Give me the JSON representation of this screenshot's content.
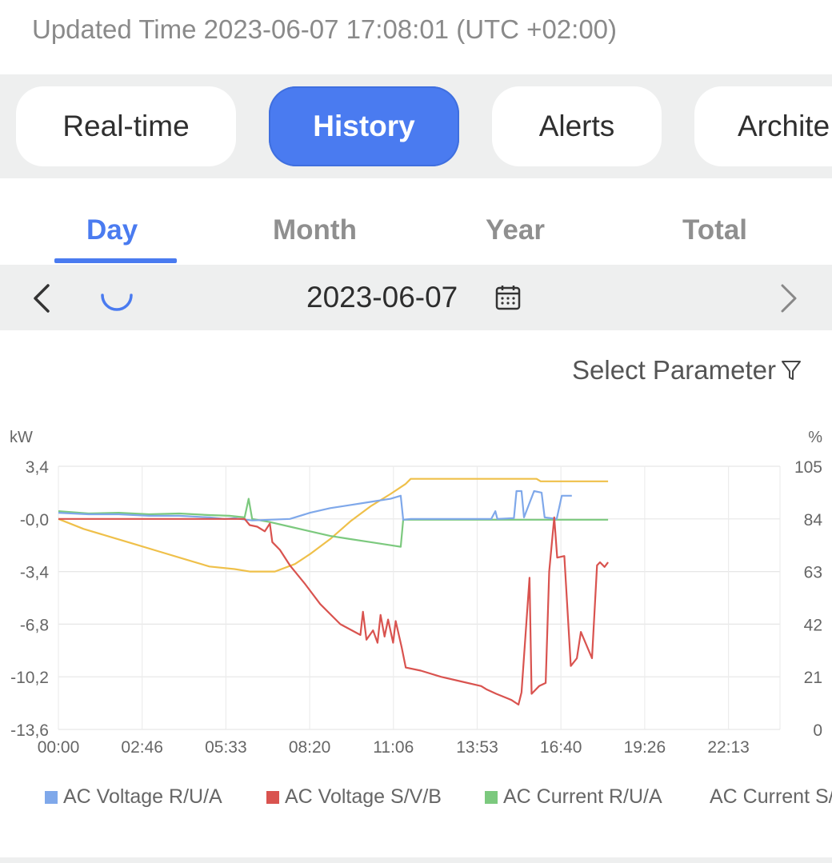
{
  "header": {
    "updated_time": "Updated Time 2023-06-07 17:08:01 (UTC +02:00)"
  },
  "tabs": [
    {
      "label": "Real-time",
      "active": false
    },
    {
      "label": "History",
      "active": true
    },
    {
      "label": "Alerts",
      "active": false
    },
    {
      "label": "Archite",
      "active": false
    }
  ],
  "periods": [
    {
      "label": "Day",
      "active": true
    },
    {
      "label": "Month",
      "active": false
    },
    {
      "label": "Year",
      "active": false
    },
    {
      "label": "Total",
      "active": false
    }
  ],
  "date_nav": {
    "date": "2023-06-07",
    "prev_icon": "chevron-left-icon",
    "next_icon": "chevron-right-icon",
    "loading_icon": "spinner-icon",
    "calendar_icon": "calendar-icon"
  },
  "filter": {
    "label": "Select Parameter",
    "icon": "filter-icon"
  },
  "colors": {
    "accent": "#4a7bf0",
    "blue": "#7fa8ea",
    "red": "#d9534f",
    "green": "#7cc97e",
    "yellow": "#efc04a"
  },
  "chart_data": {
    "type": "line",
    "ylabel_left": "kW",
    "ylabel_right": "%",
    "y_left_ticks": [
      "3,4",
      "-0,0",
      "-3,4",
      "-6,8",
      "-10,2",
      "-13,6"
    ],
    "y_right_ticks": [
      "105",
      "84",
      "63",
      "42",
      "21",
      "0"
    ],
    "x_ticks": [
      "00:00",
      "02:46",
      "05:33",
      "08:20",
      "11:06",
      "13:53",
      "16:40",
      "19:26",
      "22:13"
    ],
    "ylim_left": [
      -13.6,
      3.4
    ],
    "ylim_right": [
      0,
      105
    ],
    "grid": true,
    "legend_position": "bottom",
    "series": [
      {
        "name": "AC Voltage R/U/A",
        "color": "#7fa8ea",
        "axis": "left",
        "points": [
          [
            0,
            0.4
          ],
          [
            60,
            0.3
          ],
          [
            120,
            0.3
          ],
          [
            180,
            0.2
          ],
          [
            240,
            0.2
          ],
          [
            300,
            0.1
          ],
          [
            330,
            0.0
          ],
          [
            350,
            0.05
          ],
          [
            360,
            0.0
          ],
          [
            385,
            -0.1
          ],
          [
            420,
            -0.05
          ],
          [
            460,
            0.0
          ],
          [
            500,
            0.4
          ],
          [
            540,
            0.7
          ],
          [
            580,
            0.9
          ],
          [
            620,
            1.1
          ],
          [
            660,
            1.3
          ],
          [
            680,
            1.5
          ],
          [
            685,
            -0.05
          ],
          [
            700,
            0.0
          ],
          [
            760,
            0.0
          ],
          [
            820,
            0.0
          ],
          [
            860,
            0.0
          ],
          [
            868,
            0.5
          ],
          [
            872,
            0.0
          ],
          [
            905,
            0.05
          ],
          [
            910,
            1.8
          ],
          [
            920,
            1.8
          ],
          [
            925,
            0.1
          ],
          [
            945,
            1.8
          ],
          [
            960,
            1.7
          ],
          [
            966,
            0.1
          ],
          [
            990,
            0.0
          ],
          [
            1000,
            1.5
          ],
          [
            1020,
            1.5
          ]
        ]
      },
      {
        "name": "AC Voltage S/V/B",
        "color": "#d9534f",
        "axis": "left",
        "points": [
          [
            0,
            0.0
          ],
          [
            100,
            0.0
          ],
          [
            200,
            0.0
          ],
          [
            300,
            0.0
          ],
          [
            370,
            0.0
          ],
          [
            380,
            -0.4
          ],
          [
            395,
            -0.5
          ],
          [
            410,
            -0.8
          ],
          [
            420,
            -0.3
          ],
          [
            425,
            -1.5
          ],
          [
            440,
            -2.0
          ],
          [
            460,
            -3.0
          ],
          [
            490,
            -4.2
          ],
          [
            520,
            -5.5
          ],
          [
            560,
            -6.8
          ],
          [
            600,
            -7.5
          ],
          [
            605,
            -6.0
          ],
          [
            612,
            -7.8
          ],
          [
            625,
            -7.2
          ],
          [
            634,
            -8.0
          ],
          [
            640,
            -6.2
          ],
          [
            648,
            -7.6
          ],
          [
            655,
            -6.5
          ],
          [
            665,
            -8.0
          ],
          [
            670,
            -6.6
          ],
          [
            682,
            -8.3
          ],
          [
            690,
            -9.6
          ],
          [
            720,
            -9.8
          ],
          [
            760,
            -10.2
          ],
          [
            800,
            -10.5
          ],
          [
            840,
            -10.8
          ],
          [
            850,
            -11.0
          ],
          [
            870,
            -11.3
          ],
          [
            900,
            -11.7
          ],
          [
            914,
            -12.0
          ],
          [
            920,
            -11.2
          ],
          [
            936,
            -3.8
          ],
          [
            940,
            -11.3
          ],
          [
            955,
            -10.8
          ],
          [
            968,
            -10.6
          ],
          [
            975,
            -3.4
          ],
          [
            985,
            0.1
          ],
          [
            991,
            -2.5
          ],
          [
            1005,
            -2.4
          ],
          [
            1018,
            -9.5
          ],
          [
            1030,
            -9.0
          ],
          [
            1038,
            -7.3
          ],
          [
            1060,
            -9.0
          ],
          [
            1070,
            -3.0
          ],
          [
            1076,
            -2.8
          ],
          [
            1085,
            -3.1
          ],
          [
            1092,
            -2.8
          ]
        ]
      },
      {
        "name": "AC Current R/U/A",
        "color": "#7cc97e",
        "axis": "left",
        "points": [
          [
            0,
            0.5
          ],
          [
            60,
            0.35
          ],
          [
            120,
            0.4
          ],
          [
            180,
            0.3
          ],
          [
            240,
            0.35
          ],
          [
            300,
            0.25
          ],
          [
            340,
            0.2
          ],
          [
            370,
            0.1
          ],
          [
            378,
            1.3
          ],
          [
            385,
            0.0
          ],
          [
            420,
            -0.2
          ],
          [
            460,
            -0.5
          ],
          [
            500,
            -0.8
          ],
          [
            540,
            -1.1
          ],
          [
            580,
            -1.3
          ],
          [
            620,
            -1.5
          ],
          [
            660,
            -1.7
          ],
          [
            680,
            -1.8
          ],
          [
            685,
            -0.05
          ],
          [
            720,
            -0.05
          ],
          [
            800,
            -0.05
          ],
          [
            900,
            -0.05
          ],
          [
            1000,
            -0.05
          ],
          [
            1092,
            -0.05
          ]
        ]
      },
      {
        "name": "AC Current S/V/B",
        "color": "#efc04a",
        "axis": "right",
        "points": [
          [
            0,
            84
          ],
          [
            50,
            80
          ],
          [
            100,
            77
          ],
          [
            150,
            74
          ],
          [
            200,
            71
          ],
          [
            250,
            68
          ],
          [
            300,
            65
          ],
          [
            350,
            64
          ],
          [
            380,
            63
          ],
          [
            430,
            63
          ],
          [
            470,
            66
          ],
          [
            500,
            70
          ],
          [
            540,
            76
          ],
          [
            580,
            83
          ],
          [
            620,
            89
          ],
          [
            660,
            94
          ],
          [
            690,
            98
          ],
          [
            700,
            100
          ],
          [
            800,
            100
          ],
          [
            900,
            100
          ],
          [
            950,
            100
          ],
          [
            958,
            99
          ],
          [
            1000,
            99
          ],
          [
            1050,
            99
          ],
          [
            1092,
            99
          ]
        ]
      }
    ]
  }
}
